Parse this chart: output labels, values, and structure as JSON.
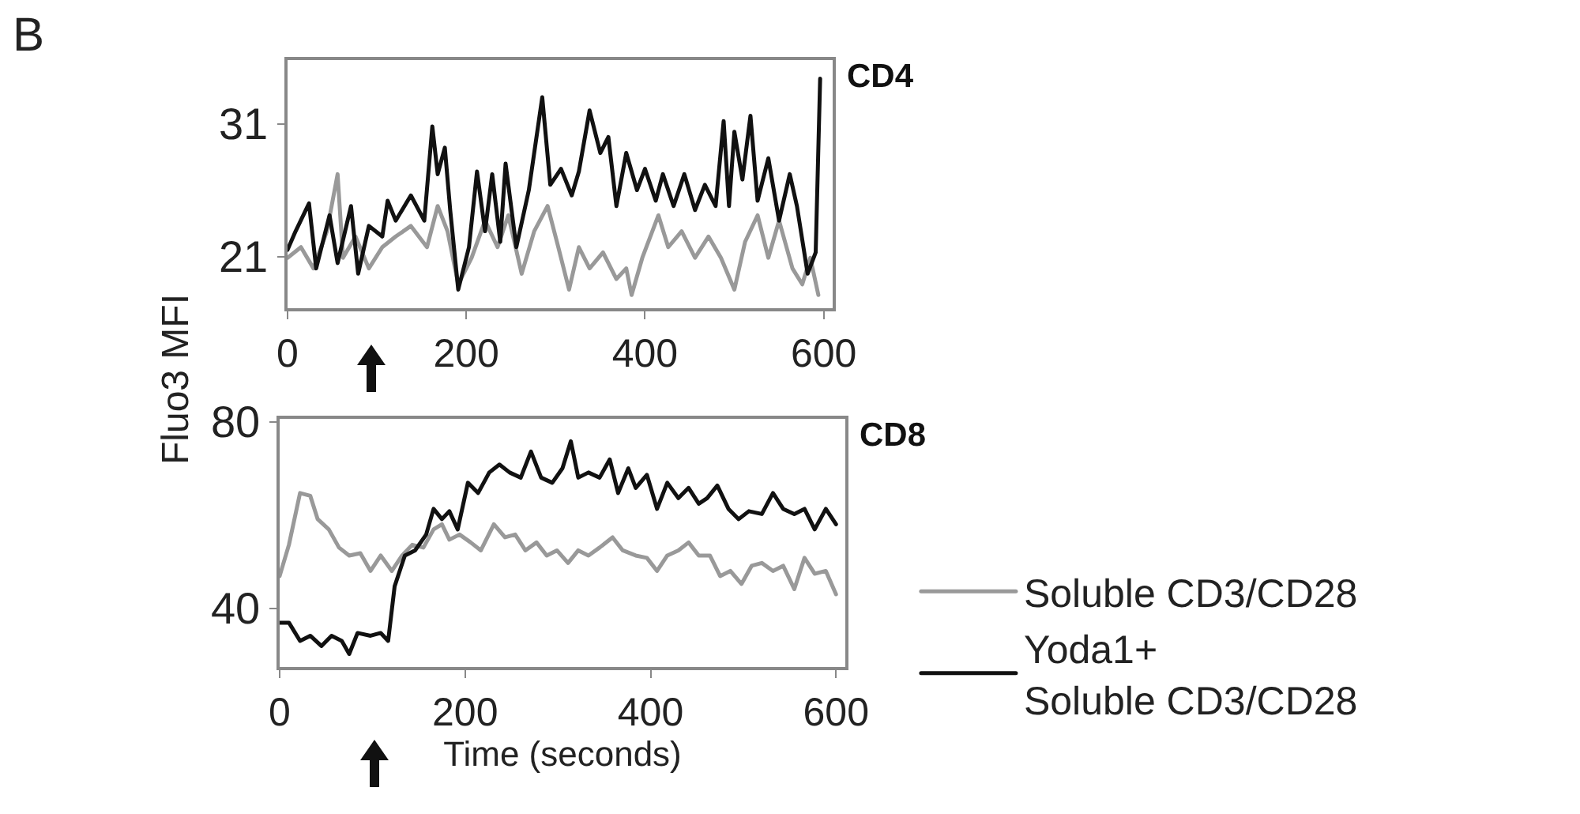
{
  "chart_data": [
    {
      "type": "line",
      "title": "CD4",
      "ylabel": "Fluo3 MFI",
      "annotations": [
        "B"
      ],
      "xlim": [
        0,
        610
      ],
      "xticks": [
        0,
        200,
        400,
        600
      ],
      "ylim": [
        17.1,
        35.8
      ],
      "yticks": [
        21,
        31
      ],
      "grid": false,
      "legend": false,
      "marker": "none",
      "line_style": "solid",
      "series": [
        {
          "color": "#999999",
          "x": [
            0,
            15,
            29,
            44,
            56,
            62,
            76,
            91,
            106,
            121,
            138,
            156,
            168,
            179,
            191,
            206,
            221,
            235,
            247,
            262,
            276,
            291,
            303,
            315,
            326,
            338,
            353,
            368,
            379,
            385,
            397,
            415,
            426,
            441,
            456,
            471,
            485,
            500,
            512,
            526,
            538,
            550,
            565,
            576,
            585,
            594
          ],
          "values": [
            20.9,
            21.7,
            20.1,
            22.9,
            27.2,
            20.9,
            22.5,
            20.1,
            21.7,
            22.5,
            23.3,
            21.7,
            24.8,
            22.9,
            18.9,
            20.9,
            23.7,
            21.7,
            24.1,
            19.7,
            22.9,
            24.8,
            21.7,
            18.5,
            21.7,
            20.1,
            21.3,
            19.3,
            20.1,
            18.1,
            20.9,
            24.1,
            21.7,
            22.9,
            20.9,
            22.5,
            20.9,
            18.5,
            22.1,
            24.1,
            20.9,
            23.7,
            20.1,
            18.9,
            20.9,
            18.1
          ]
        },
        {
          "color": "#111111",
          "x": [
            0,
            9,
            24,
            32,
            47,
            56,
            71,
            79,
            91,
            106,
            112,
            121,
            138,
            153,
            162,
            168,
            176,
            182,
            191,
            203,
            212,
            221,
            229,
            238,
            244,
            256,
            270,
            285,
            294,
            306,
            318,
            326,
            338,
            350,
            359,
            368,
            379,
            391,
            400,
            412,
            420,
            432,
            444,
            456,
            467,
            479,
            488,
            494,
            500,
            509,
            518,
            526,
            538,
            550,
            562,
            570,
            582,
            591,
            596
          ],
          "values": [
            21.5,
            22.9,
            25.0,
            20.1,
            24.1,
            20.5,
            24.8,
            19.7,
            23.3,
            22.5,
            25.2,
            23.7,
            25.6,
            23.7,
            30.8,
            27.2,
            29.2,
            24.5,
            18.5,
            21.7,
            27.4,
            22.9,
            27.2,
            22.1,
            28.0,
            21.7,
            26.0,
            33.0,
            26.4,
            27.6,
            25.6,
            27.4,
            32.0,
            28.8,
            30.0,
            24.8,
            28.8,
            26.0,
            27.6,
            25.2,
            27.2,
            24.8,
            27.2,
            24.5,
            26.4,
            24.8,
            31.2,
            24.8,
            30.4,
            26.8,
            31.6,
            25.2,
            28.4,
            23.7,
            27.2,
            24.8,
            19.7,
            21.3,
            34.4
          ]
        }
      ]
    },
    {
      "type": "line",
      "title": "CD8",
      "xlabel": "Time (seconds)",
      "xlim": [
        0,
        610
      ],
      "xticks": [
        0,
        200,
        400,
        600
      ],
      "ylim": [
        27.4,
        80.6
      ],
      "yticks": [
        40,
        80
      ],
      "grid": false,
      "legend": "right",
      "marker": "none",
      "line_style": "solid",
      "series": [
        {
          "name": "Soluble CD3/CD28",
          "color": "#999999",
          "x": [
            0,
            10,
            22,
            33,
            41,
            53,
            64,
            75,
            87,
            98,
            109,
            121,
            132,
            143,
            155,
            166,
            175,
            183,
            194,
            206,
            217,
            231,
            243,
            254,
            265,
            277,
            288,
            299,
            311,
            322,
            333,
            345,
            359,
            370,
            384,
            396,
            407,
            418,
            430,
            441,
            452,
            464,
            475,
            486,
            498,
            509,
            520,
            532,
            543,
            555,
            566,
            577,
            589,
            600
          ],
          "values": [
            46.9,
            53.6,
            64.7,
            64.1,
            59.1,
            56.9,
            53.0,
            51.3,
            51.8,
            48.0,
            51.3,
            48.0,
            51.3,
            53.6,
            53.0,
            56.9,
            58.0,
            54.7,
            55.8,
            54.1,
            52.4,
            58.0,
            55.2,
            55.8,
            52.4,
            54.1,
            51.3,
            52.4,
            49.7,
            52.4,
            51.3,
            53.0,
            55.2,
            52.4,
            51.3,
            50.8,
            48.0,
            51.3,
            52.4,
            54.1,
            51.3,
            51.3,
            46.9,
            48.0,
            45.2,
            49.1,
            49.7,
            48.0,
            49.1,
            44.1,
            50.8,
            47.4,
            48.0,
            43.0
          ]
        },
        {
          "name": "Yoda1+\nSoluble CD3/CD28",
          "color": "#111111",
          "x": [
            0,
            10,
            22,
            33,
            45,
            56,
            67,
            75,
            84,
            98,
            109,
            117,
            124,
            135,
            146,
            158,
            166,
            175,
            183,
            192,
            203,
            214,
            226,
            237,
            248,
            260,
            271,
            282,
            294,
            305,
            314,
            322,
            333,
            345,
            356,
            365,
            376,
            384,
            396,
            407,
            418,
            430,
            441,
            452,
            461,
            472,
            484,
            495,
            506,
            520,
            532,
            543,
            555,
            566,
            577,
            589,
            600
          ],
          "values": [
            36.9,
            36.9,
            33.0,
            34.1,
            31.9,
            34.1,
            33.0,
            30.2,
            34.7,
            34.1,
            34.7,
            33.0,
            44.7,
            51.3,
            52.4,
            55.8,
            61.3,
            59.1,
            60.8,
            56.9,
            66.9,
            64.7,
            69.1,
            70.8,
            69.1,
            68.0,
            73.6,
            68.0,
            66.9,
            70.0,
            75.8,
            68.0,
            69.1,
            68.0,
            71.9,
            64.7,
            70.0,
            65.8,
            68.6,
            61.3,
            66.9,
            63.6,
            65.8,
            62.4,
            63.6,
            66.3,
            61.3,
            59.1,
            60.8,
            60.2,
            64.7,
            61.3,
            60.2,
            61.3,
            56.9,
            61.3,
            58.0
          ]
        }
      ]
    }
  ]
}
